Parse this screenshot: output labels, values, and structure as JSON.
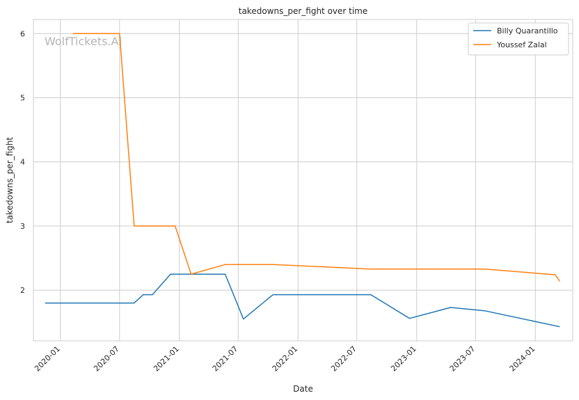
{
  "chart_data": {
    "type": "line",
    "title": "takedowns_per_fight over time",
    "xlabel": "Date",
    "ylabel": "takedowns_per_fight",
    "watermark": "WolfTickets.AI",
    "xlim": [
      "2019-10-10",
      "2024-04-25"
    ],
    "ylim": [
      1.21,
      6.22
    ],
    "x_ticks": [
      "2020-01",
      "2020-07",
      "2021-01",
      "2021-07",
      "2022-01",
      "2022-07",
      "2023-01",
      "2023-07",
      "2024-01"
    ],
    "y_ticks": [
      2,
      3,
      4,
      5,
      6
    ],
    "grid": true,
    "legend_position": "top-right",
    "colors": {
      "Billy Quarantillo": "#1f77b4",
      "Youssef Zalal": "#ff7f0e"
    },
    "series": [
      {
        "name": "Billy Quarantillo",
        "points": [
          [
            "2019-11-15",
            1.8
          ],
          [
            "2020-08-15",
            1.8
          ],
          [
            "2020-09-12",
            1.93
          ],
          [
            "2020-10-10",
            1.93
          ],
          [
            "2020-12-05",
            2.25
          ],
          [
            "2021-05-22",
            2.25
          ],
          [
            "2021-07-17",
            1.55
          ],
          [
            "2021-10-16",
            1.93
          ],
          [
            "2022-08-13",
            1.93
          ],
          [
            "2022-12-10",
            1.56
          ],
          [
            "2023-04-15",
            1.73
          ],
          [
            "2023-07-29",
            1.68
          ],
          [
            "2024-03-16",
            1.43
          ]
        ]
      },
      {
        "name": "Youssef Zalal",
        "points": [
          [
            "2020-02-08",
            6.0
          ],
          [
            "2020-07-01",
            6.0
          ],
          [
            "2020-08-15",
            3.0
          ],
          [
            "2020-12-19",
            3.0
          ],
          [
            "2021-02-06",
            2.25
          ],
          [
            "2021-05-22",
            2.4
          ],
          [
            "2021-10-16",
            2.4
          ],
          [
            "2022-08-13",
            2.33
          ],
          [
            "2023-07-29",
            2.33
          ],
          [
            "2024-03-02",
            2.24
          ],
          [
            "2024-03-16",
            2.14
          ]
        ]
      }
    ]
  }
}
